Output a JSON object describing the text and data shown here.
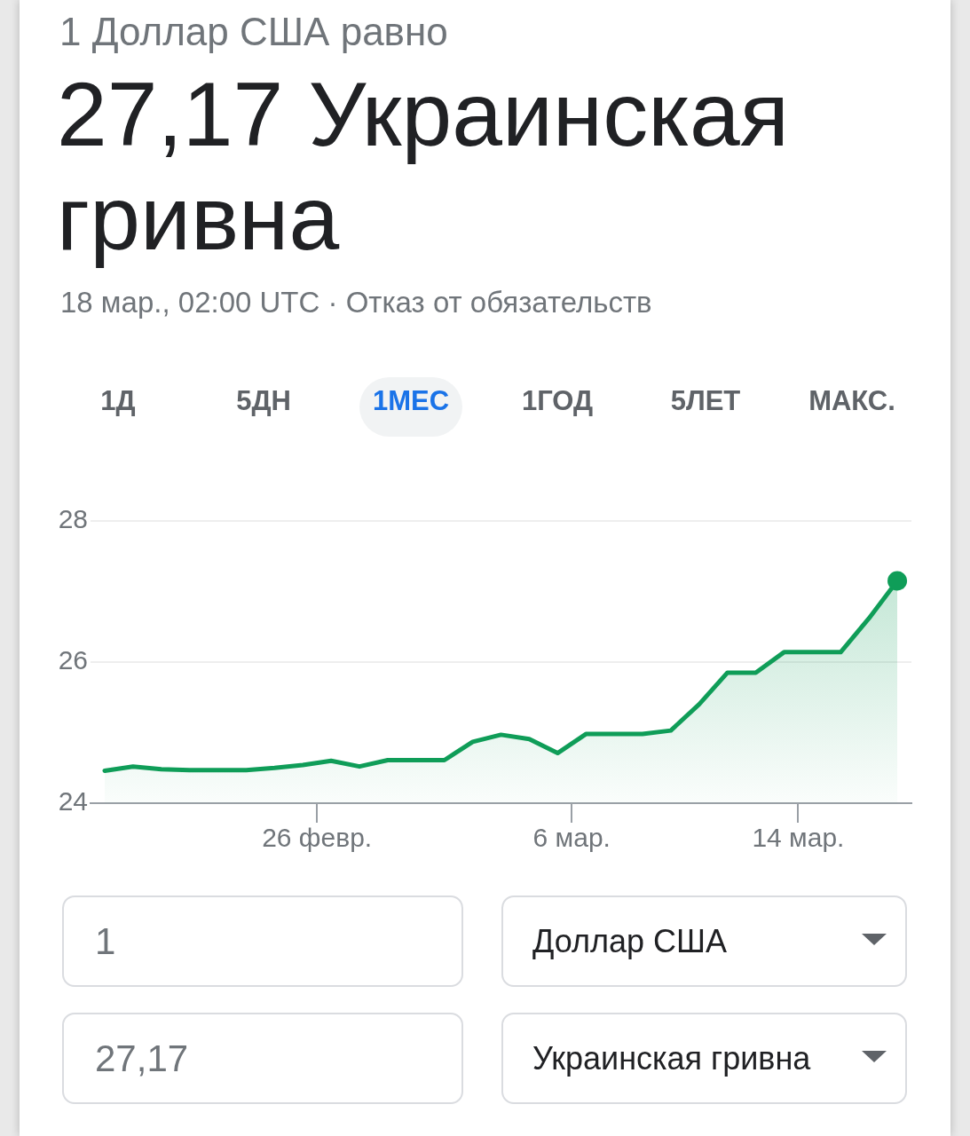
{
  "chart_data": {
    "type": "area",
    "title": "27,17 Украинская гривна",
    "subtitle": "1 Доллар США равно",
    "annotations": [
      "18 мар., 02:00 UTC · Отказ от обязательств",
      "1Д",
      "5ДН",
      "1МЕС",
      "1ГОД",
      "5ЛЕТ",
      "МАКС.",
      "1",
      "Доллар США",
      "27,17",
      "Украинская гривна"
    ],
    "x": [
      "--02-18T12:00",
      "--02-19T12:00",
      "--02-20T12:00",
      "--02-21T12:00",
      "--02-22T12:00",
      "--02-23T12:00",
      "--02-24T12:00",
      "--02-25T12:00",
      "--02-26T12:00",
      "--02-27T12:00",
      "--02-28T12:00",
      "--02-29T12:00",
      "--03-01T12:00",
      "--03-02T12:00",
      "--03-03T12:00",
      "--03-04T12:00",
      "--03-05T12:00",
      "--03-06T12:00",
      "--03-07T12:00",
      "--03-08T12:00",
      "--03-09T12:00",
      "--03-10T12:00",
      "--03-11T12:00",
      "--03-12T12:00",
      "--03-13T12:00",
      "--03-14T12:00",
      "--03-15T12:00",
      "--03-16T12:00",
      "--03-17T12:00"
    ],
    "series": [
      {
        "color": "#0f9d58",
        "marker": "none",
        "values": [
          24.46,
          24.52,
          24.48,
          24.47,
          24.47,
          24.47,
          24.5,
          24.54,
          24.6,
          24.52,
          24.61,
          24.61,
          24.61,
          24.87,
          24.97,
          24.91,
          24.71,
          24.98,
          24.98,
          24.98,
          25.03,
          25.4,
          25.85,
          25.85,
          26.14,
          26.14,
          26.14,
          26.62,
          27.15
        ]
      },
      {
        "type": "scatter",
        "color": "#0f9d58",
        "marker": "circle",
        "x": [
          "--03-17T12:00"
        ],
        "values": [
          27.15
        ]
      }
    ],
    "xlim": [
      "--02-18",
      "--03-18"
    ],
    "xticks": [
      {
        "value": "--02-26",
        "label": "26 февр."
      },
      {
        "value": "--03-06",
        "label": "6 мар."
      },
      {
        "value": "--03-14",
        "label": "14 мар."
      }
    ],
    "ylim": [
      24,
      28
    ],
    "yticks": [
      24,
      26,
      28
    ],
    "grid": "y"
  }
}
